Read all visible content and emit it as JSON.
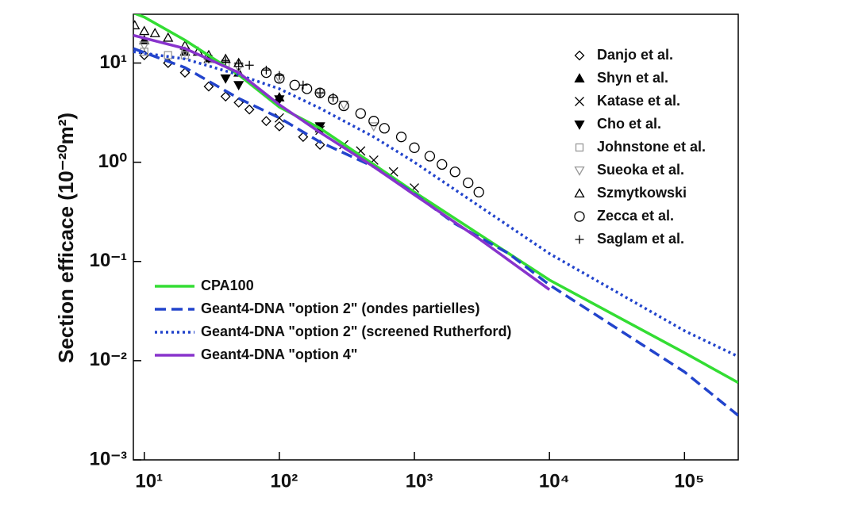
{
  "chart_data": {
    "type": "line",
    "ylabel": "Section efficace (10⁻²⁰m²)",
    "xscale": "log",
    "yscale": "log",
    "xlim": [
      8.3,
      250000
    ],
    "ylim": [
      0.001,
      31
    ],
    "xticks": [
      {
        "value": 10,
        "label": "10¹"
      },
      {
        "value": 100,
        "label": "10²"
      },
      {
        "value": 1000,
        "label": "10³"
      },
      {
        "value": 10000,
        "label": "10⁴"
      },
      {
        "value": 100000,
        "label": "10⁵"
      }
    ],
    "yticks": [
      {
        "value": 0.001,
        "label": "10⁻³"
      },
      {
        "value": 0.01,
        "label": "10⁻²"
      },
      {
        "value": 0.1,
        "label": "10⁻¹"
      },
      {
        "value": 1,
        "label": "10⁰"
      },
      {
        "value": 10,
        "label": "10¹"
      }
    ],
    "series": [
      {
        "name": "Danjo et al.",
        "mode": "markers",
        "marker": "diamond",
        "color": "#000000",
        "x": [
          10,
          15,
          20,
          30,
          40,
          50,
          60,
          80,
          100,
          150,
          200
        ],
        "values": [
          12,
          10,
          8,
          5.8,
          4.6,
          4,
          3.4,
          2.6,
          2.3,
          1.8,
          1.5
        ]
      },
      {
        "name": "Shyn et al.",
        "mode": "markers",
        "marker": "triangle-up-filled",
        "color": "#000000",
        "x": [
          10,
          20,
          30,
          50,
          100,
          200
        ],
        "values": [
          17,
          13,
          11,
          8,
          4.5,
          2.2
        ]
      },
      {
        "name": "Katase et al.",
        "mode": "markers",
        "marker": "x",
        "color": "#000000",
        "x": [
          100,
          200,
          300,
          400,
          500,
          700,
          1000
        ],
        "values": [
          2.8,
          2.1,
          1.5,
          1.3,
          1.05,
          0.8,
          0.55
        ]
      },
      {
        "name": "Cho et al.",
        "mode": "markers",
        "marker": "triangle-down-filled",
        "color": "#000000",
        "x": [
          40,
          50,
          100,
          200
        ],
        "values": [
          7,
          6,
          4.3,
          2.3
        ]
      },
      {
        "name": "Johnstone et al.",
        "mode": "markers",
        "marker": "square",
        "color": "#999999",
        "x": [
          10,
          15,
          20,
          30,
          40
        ],
        "values": [
          13,
          12,
          12,
          11,
          10
        ]
      },
      {
        "name": "Sueoka et al.",
        "mode": "markers",
        "marker": "triangle-down",
        "color": "#999999",
        "x": [
          10,
          20,
          50,
          100,
          200,
          300,
          500
        ],
        "values": [
          15,
          13,
          9,
          7,
          5,
          3.8,
          2.3
        ]
      },
      {
        "name": "Szmytkowski",
        "mode": "markers",
        "marker": "triangle-up",
        "color": "#000000",
        "x": [
          8.5,
          10,
          12,
          15,
          20,
          25,
          30,
          40,
          50
        ],
        "values": [
          24,
          21,
          20,
          18,
          15,
          13,
          12,
          11,
          10
        ]
      },
      {
        "name": "Zecca et al.",
        "mode": "markers",
        "marker": "circle",
        "color": "#000000",
        "x": [
          80,
          100,
          130,
          160,
          200,
          250,
          300,
          400,
          500,
          600,
          800,
          1000,
          1300,
          1600,
          2000,
          2500,
          3000
        ],
        "values": [
          8,
          7,
          6,
          5.5,
          5,
          4.3,
          3.7,
          3.1,
          2.6,
          2.2,
          1.8,
          1.4,
          1.15,
          0.95,
          0.8,
          0.62,
          0.5
        ]
      },
      {
        "name": "Saglam et al.",
        "mode": "markers",
        "marker": "plus",
        "color": "#000000",
        "x": [
          30,
          40,
          50,
          60,
          80,
          100,
          150,
          200,
          250
        ],
        "values": [
          11,
          10.5,
          10,
          9.5,
          8.5,
          7.5,
          6,
          5,
          4.5
        ]
      },
      {
        "name": "CPA100",
        "mode": "line",
        "dash": "solid",
        "color": "#33dd33",
        "x": [
          8.3,
          10,
          20,
          50,
          100,
          200,
          500,
          1000,
          10000,
          100000,
          250000
        ],
        "values": [
          32,
          29,
          17,
          7.6,
          3.6,
          2.2,
          0.95,
          0.5,
          0.065,
          0.012,
          0.006
        ]
      },
      {
        "name": "Geant4-DNA \"option 2\" (ondes partielles)",
        "mode": "line",
        "dash": "dashed",
        "color": "#2244cc",
        "x": [
          8.3,
          20,
          50,
          100,
          200,
          500,
          1000,
          2000,
          5000,
          10000,
          100000,
          250000
        ],
        "values": [
          14,
          9,
          4.4,
          2.8,
          1.6,
          0.9,
          0.48,
          0.24,
          0.12,
          0.058,
          0.0077,
          0.0028
        ]
      },
      {
        "name": "Geant4-DNA \"option 2\" (screened Rutherford)",
        "mode": "line",
        "dash": "dotted",
        "color": "#2244cc",
        "x": [
          8.3,
          20,
          50,
          100,
          200,
          500,
          1000,
          10000,
          100000,
          250000
        ],
        "values": [
          13,
          11,
          7.6,
          5.5,
          3.5,
          1.8,
          1,
          0.12,
          0.02,
          0.011
        ]
      },
      {
        "name": "Geant4-DNA \"option 4\"",
        "mode": "line",
        "dash": "solid",
        "color": "#8833cc",
        "x": [
          8.3,
          20,
          50,
          100,
          200,
          500,
          1000,
          3000,
          10000
        ],
        "values": [
          19,
          14,
          8,
          3.8,
          2,
          0.9,
          0.47,
          0.17,
          0.052
        ]
      }
    ]
  }
}
